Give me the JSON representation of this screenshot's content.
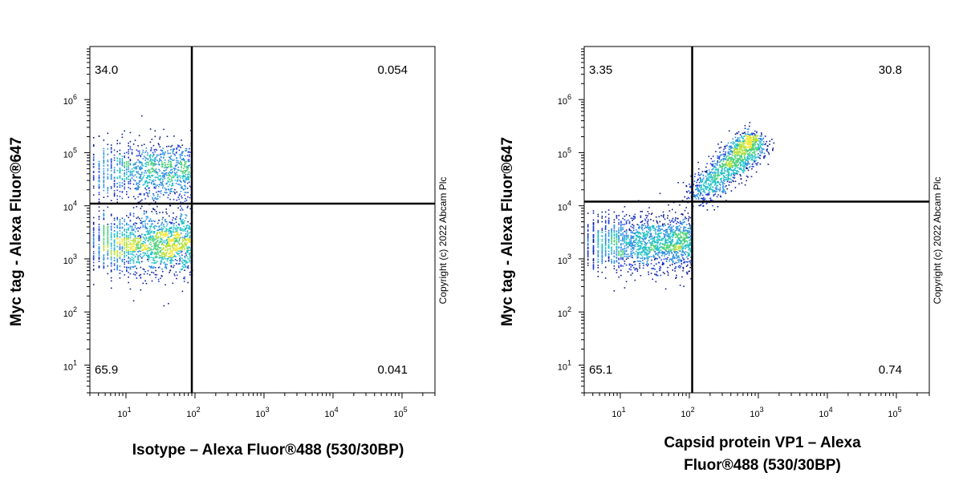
{
  "chart_data": [
    {
      "type": "scatter",
      "subtype": "flow-cytometry-density-dot-plot",
      "xlabel_lines": [
        "Isotype – Alexa Fluor®488 (530/30BP)"
      ],
      "ylabel": "Myc tag - Alexa Fluor®647",
      "x_scale": "log",
      "y_scale": "log",
      "xlim": [
        3,
        300000
      ],
      "ylim": [
        3,
        10000000
      ],
      "x_ticks": [
        10,
        100,
        1000,
        10000,
        100000
      ],
      "y_ticks": [
        10,
        100,
        1000,
        10000,
        100000,
        1000000
      ],
      "gate": {
        "x": 90,
        "y": 11000
      },
      "quadrants": {
        "upper_left": "34.0",
        "upper_right": "0.054",
        "lower_left": "65.9",
        "lower_right": "0.041"
      },
      "copyright": "Copyright (c) 2022 Abcam Plc",
      "populations": [
        {
          "x_range": [
            3,
            90
          ],
          "y_center": 2000,
          "y_spread": 0.28,
          "count": 1700
        },
        {
          "x_range": [
            3,
            90
          ],
          "y_center": 45000,
          "y_spread": 0.28,
          "count": 1100
        }
      ]
    },
    {
      "type": "scatter",
      "subtype": "flow-cytometry-density-dot-plot",
      "xlabel_lines": [
        "Capsid protein VP1 – Alexa",
        "Fluor®488 (530/30BP)"
      ],
      "ylabel": "Myc tag - Alexa Fluor®647",
      "x_scale": "log",
      "y_scale": "log",
      "xlim": [
        3,
        300000
      ],
      "ylim": [
        3,
        10000000
      ],
      "x_ticks": [
        10,
        100,
        1000,
        10000,
        100000
      ],
      "y_ticks": [
        10,
        100,
        1000,
        10000,
        100000,
        1000000
      ],
      "gate": {
        "x": 110,
        "y": 12000
      },
      "quadrants": {
        "upper_left": "3.35",
        "upper_right": "30.8",
        "lower_left": "65.1",
        "lower_right": "0.74"
      },
      "copyright": "Copyright (c) 2022 Abcam Plc",
      "populations": [
        {
          "x_range": [
            3,
            110
          ],
          "y_center": 2000,
          "y_spread": 0.26,
          "count": 1800
        },
        {
          "diagonal": true,
          "x_range": [
            110,
            1000
          ],
          "y_range": [
            12000,
            200000
          ],
          "count": 1300
        }
      ]
    }
  ]
}
